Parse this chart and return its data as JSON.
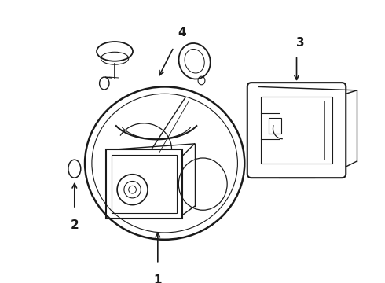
{
  "background_color": "#ffffff",
  "line_color": "#1a1a1a",
  "lw": 1.0,
  "figsize": [
    4.9,
    3.6
  ],
  "dpi": 100,
  "label_fontsize": 11
}
